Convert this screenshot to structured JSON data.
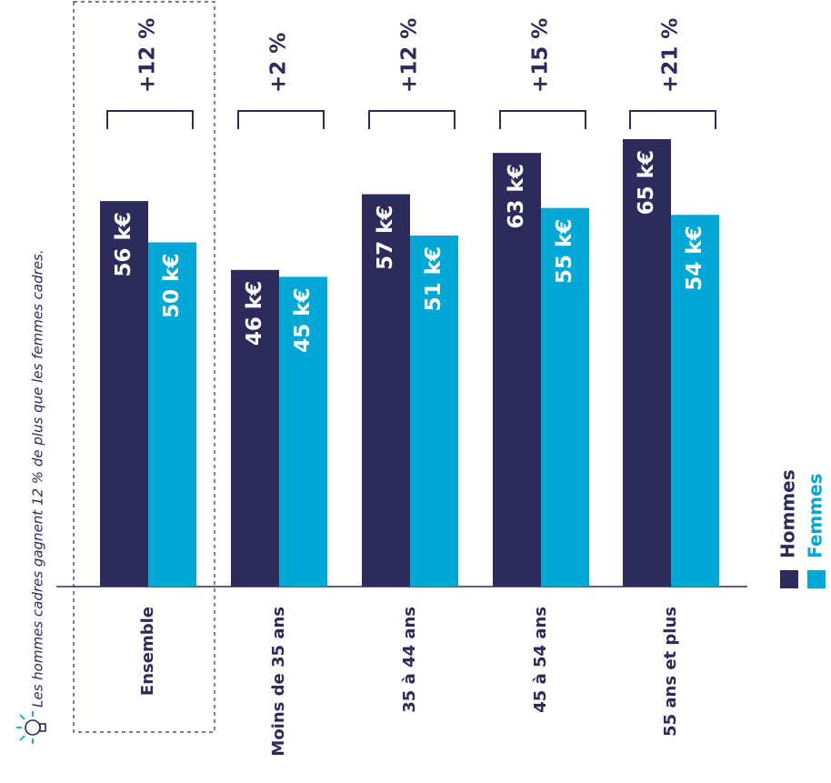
{
  "chart_data": {
    "type": "bar",
    "categories": [
      "Ensemble",
      "Moins de 35 ans",
      "35 à 44 ans",
      "45 à 54 ans",
      "55 ans et plus"
    ],
    "series": [
      {
        "name": "Hommes",
        "values": [
          56,
          46,
          57,
          63,
          65
        ],
        "labels": [
          "56 k€",
          "46 k€",
          "57 k€",
          "63 k€",
          "65 k€"
        ],
        "color": "#2d2a5c"
      },
      {
        "name": "Femmes",
        "values": [
          50,
          45,
          51,
          55,
          54
        ],
        "labels": [
          "50 k€",
          "45 k€",
          "51 k€",
          "55 k€",
          "54 k€"
        ],
        "color": "#00a8d8"
      }
    ],
    "differences": [
      "+12 %",
      "+2 %",
      "+12 %",
      "+15 %",
      "+21 %"
    ],
    "highlighted_category": "Ensemble",
    "unit": "k€",
    "ylim": [
      0,
      65
    ]
  },
  "note": {
    "icon": "lightbulb-icon",
    "text": "Les hommes cadres gagnent 12 % de plus que les femmes cadres."
  },
  "legend": [
    {
      "label": "Hommes",
      "color": "#2d2a5c"
    },
    {
      "label": "Femmes",
      "color": "#00a8d8"
    }
  ]
}
